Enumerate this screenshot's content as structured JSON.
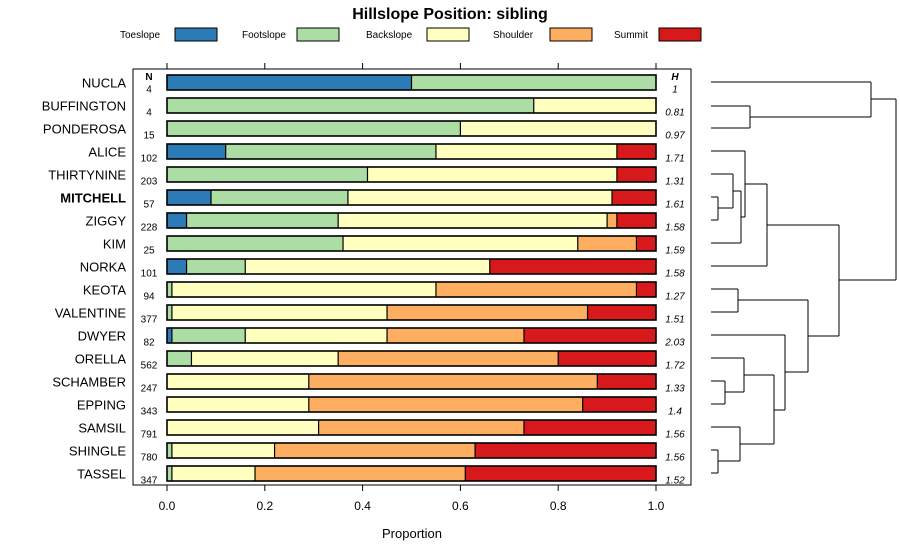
{
  "chart_data": {
    "type": "bar",
    "stacked": true,
    "orientation": "horizontal",
    "title": "Hillslope Position: sibling",
    "xlabel": "Proportion",
    "xlim": [
      0,
      1
    ],
    "x_ticks": [
      "0.0",
      "0.2",
      "0.4",
      "0.6",
      "0.8",
      "1.0"
    ],
    "legend_position": "top",
    "n_header": "N",
    "h_header": "H",
    "highlighted_category": "MITCHELL",
    "series": [
      {
        "name": "Toeslope",
        "color": "#2c7bb6"
      },
      {
        "name": "Footslope",
        "color": "#abdda4"
      },
      {
        "name": "Backslope",
        "color": "#ffffbf"
      },
      {
        "name": "Shoulder",
        "color": "#fdae61"
      },
      {
        "name": "Summit",
        "color": "#d7191c"
      }
    ],
    "categories": [
      "NUCLA",
      "BUFFINGTON",
      "PONDEROSA",
      "ALICE",
      "THIRTYNINE",
      "MITCHELL",
      "ZIGGY",
      "KIM",
      "NORKA",
      "KEOTA",
      "VALENTINE",
      "DWYER",
      "ORELLA",
      "SCHAMBER",
      "EPPING",
      "SAMSIL",
      "SHINGLE",
      "TASSEL"
    ],
    "n": [
      "4",
      "4",
      "15",
      "102",
      "203",
      "57",
      "228",
      "25",
      "101",
      "94",
      "377",
      "82",
      "562",
      "247",
      "343",
      "791",
      "780",
      "347"
    ],
    "h": [
      "1",
      "0.81",
      "0.97",
      "1.71",
      "1.31",
      "1.61",
      "1.58",
      "1.59",
      "1.58",
      "1.27",
      "1.51",
      "2.03",
      "1.72",
      "1.33",
      "1.4",
      "1.56",
      "1.56",
      "1.52"
    ],
    "values": [
      [
        0.5,
        0.5,
        0.0,
        0.0,
        0.0
      ],
      [
        0.0,
        0.75,
        0.25,
        0.0,
        0.0
      ],
      [
        0.0,
        0.6,
        0.4,
        0.0,
        0.0
      ],
      [
        0.12,
        0.43,
        0.37,
        0.0,
        0.08
      ],
      [
        0.0,
        0.41,
        0.51,
        0.0,
        0.08
      ],
      [
        0.09,
        0.28,
        0.54,
        0.0,
        0.09
      ],
      [
        0.04,
        0.31,
        0.55,
        0.02,
        0.08
      ],
      [
        0.0,
        0.36,
        0.48,
        0.12,
        0.04
      ],
      [
        0.04,
        0.12,
        0.5,
        0.0,
        0.34
      ],
      [
        0.0,
        0.01,
        0.54,
        0.41,
        0.04
      ],
      [
        0.0,
        0.01,
        0.44,
        0.41,
        0.14
      ],
      [
        0.01,
        0.15,
        0.29,
        0.28,
        0.27
      ],
      [
        0.0,
        0.05,
        0.3,
        0.45,
        0.2
      ],
      [
        0.0,
        0.0,
        0.29,
        0.59,
        0.12
      ],
      [
        0.0,
        0.0,
        0.29,
        0.56,
        0.15
      ],
      [
        0.0,
        0.0,
        0.31,
        0.42,
        0.27
      ],
      [
        0.0,
        0.01,
        0.21,
        0.41,
        0.37
      ],
      [
        0.0,
        0.01,
        0.17,
        0.43,
        0.39
      ]
    ]
  }
}
